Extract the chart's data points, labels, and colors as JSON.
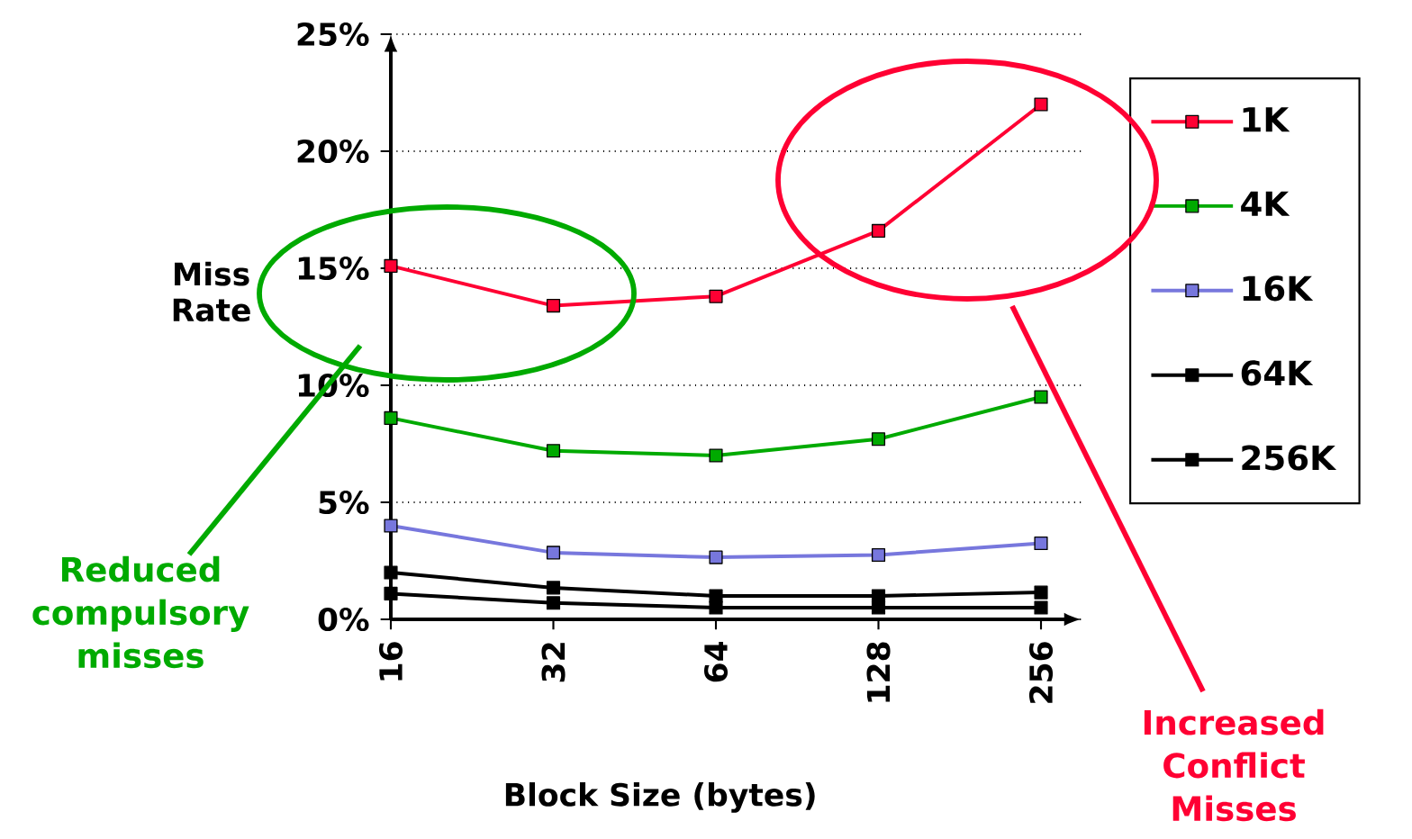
{
  "chart_data": {
    "type": "line",
    "xlabel": "Block Size (bytes)",
    "ylabel": "Miss Rate",
    "categories": [
      "16",
      "32",
      "64",
      "128",
      "256"
    ],
    "series": [
      {
        "name": "1K",
        "color": "#ff0033",
        "values": [
          15.1,
          13.4,
          13.8,
          16.6,
          22.0
        ]
      },
      {
        "name": "4K",
        "color": "#00aa00",
        "values": [
          8.6,
          7.2,
          7.0,
          7.7,
          9.5
        ]
      },
      {
        "name": "16K",
        "color": "#7777dd",
        "values": [
          4.0,
          2.85,
          2.65,
          2.75,
          3.25
        ]
      },
      {
        "name": "64K",
        "color": "#000000",
        "values": [
          2.0,
          1.35,
          1.0,
          1.0,
          1.15
        ]
      },
      {
        "name": "256K",
        "color": "#000000",
        "values": [
          1.1,
          0.7,
          0.5,
          0.5,
          0.5
        ]
      }
    ],
    "ylim": [
      0,
      25
    ],
    "yticks": [
      {
        "value": 0,
        "label": "0%"
      },
      {
        "value": 5,
        "label": "5%"
      },
      {
        "value": 10,
        "label": "10%"
      },
      {
        "value": 15,
        "label": "15%"
      },
      {
        "value": 20,
        "label": "20%"
      },
      {
        "value": 25,
        "label": "25%"
      }
    ],
    "grid": "y",
    "legend": "right",
    "marker": "square",
    "line_style": "solid",
    "annotations": [
      "Reduced compulsory misses",
      "Increased Conflict Misses"
    ]
  }
}
